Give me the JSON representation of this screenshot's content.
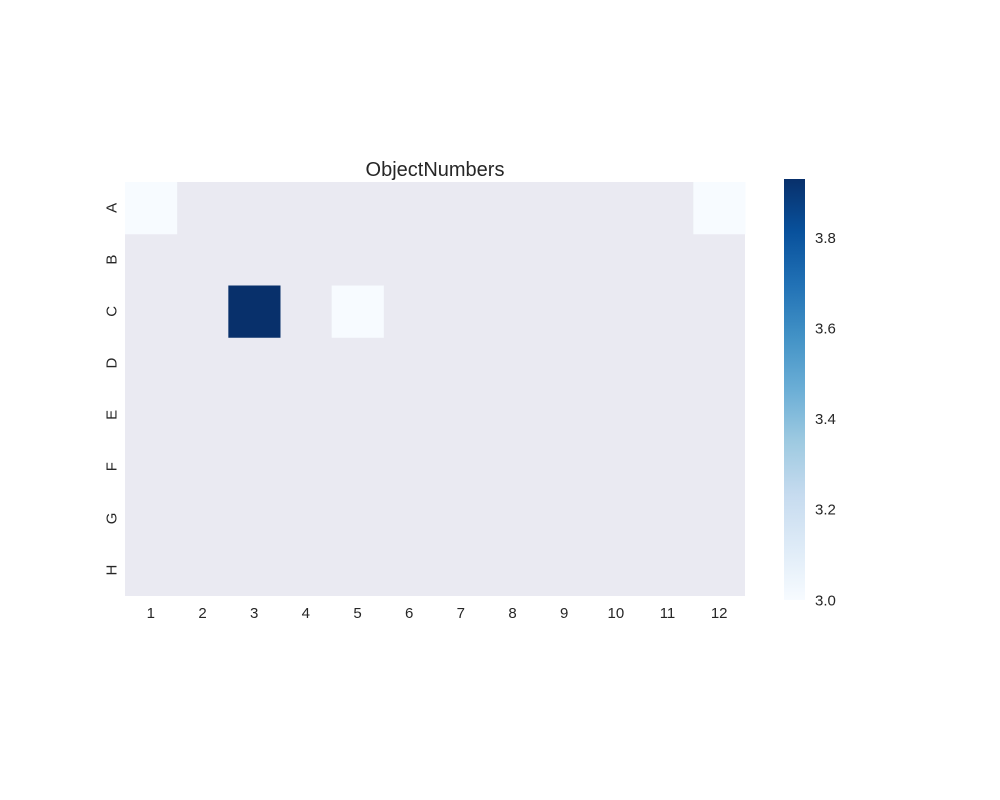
{
  "chart_data": {
    "type": "heatmap",
    "title": "ObjectNumbers",
    "xlabel": "",
    "ylabel": "",
    "x_categories": [
      "1",
      "2",
      "3",
      "4",
      "5",
      "6",
      "7",
      "8",
      "9",
      "10",
      "11",
      "12"
    ],
    "y_categories": [
      "A",
      "B",
      "C",
      "D",
      "E",
      "F",
      "G",
      "H"
    ],
    "values": [
      [
        3,
        null,
        null,
        null,
        null,
        null,
        null,
        null,
        null,
        null,
        null,
        3
      ],
      [
        null,
        null,
        null,
        null,
        null,
        null,
        null,
        null,
        null,
        null,
        null,
        null
      ],
      [
        null,
        null,
        3.93,
        null,
        3,
        null,
        null,
        null,
        null,
        null,
        null,
        null
      ],
      [
        null,
        null,
        null,
        null,
        null,
        null,
        null,
        null,
        null,
        null,
        null,
        null
      ],
      [
        null,
        null,
        null,
        null,
        null,
        null,
        null,
        null,
        null,
        null,
        null,
        null
      ],
      [
        null,
        null,
        null,
        null,
        null,
        null,
        null,
        null,
        null,
        null,
        null,
        null
      ],
      [
        null,
        null,
        null,
        null,
        null,
        null,
        null,
        null,
        null,
        null,
        null,
        null
      ],
      [
        null,
        null,
        null,
        null,
        null,
        null,
        null,
        null,
        null,
        null,
        null,
        null
      ]
    ],
    "colorbar": {
      "colormap": "Blues",
      "range": [
        3.0,
        3.93
      ],
      "ticks": [
        "3.0",
        "3.2",
        "3.4",
        "3.6",
        "3.8"
      ]
    },
    "missing_color": "#eaeaf2",
    "colors": {
      "low": "#f7fbff",
      "high": "#08306b"
    }
  }
}
